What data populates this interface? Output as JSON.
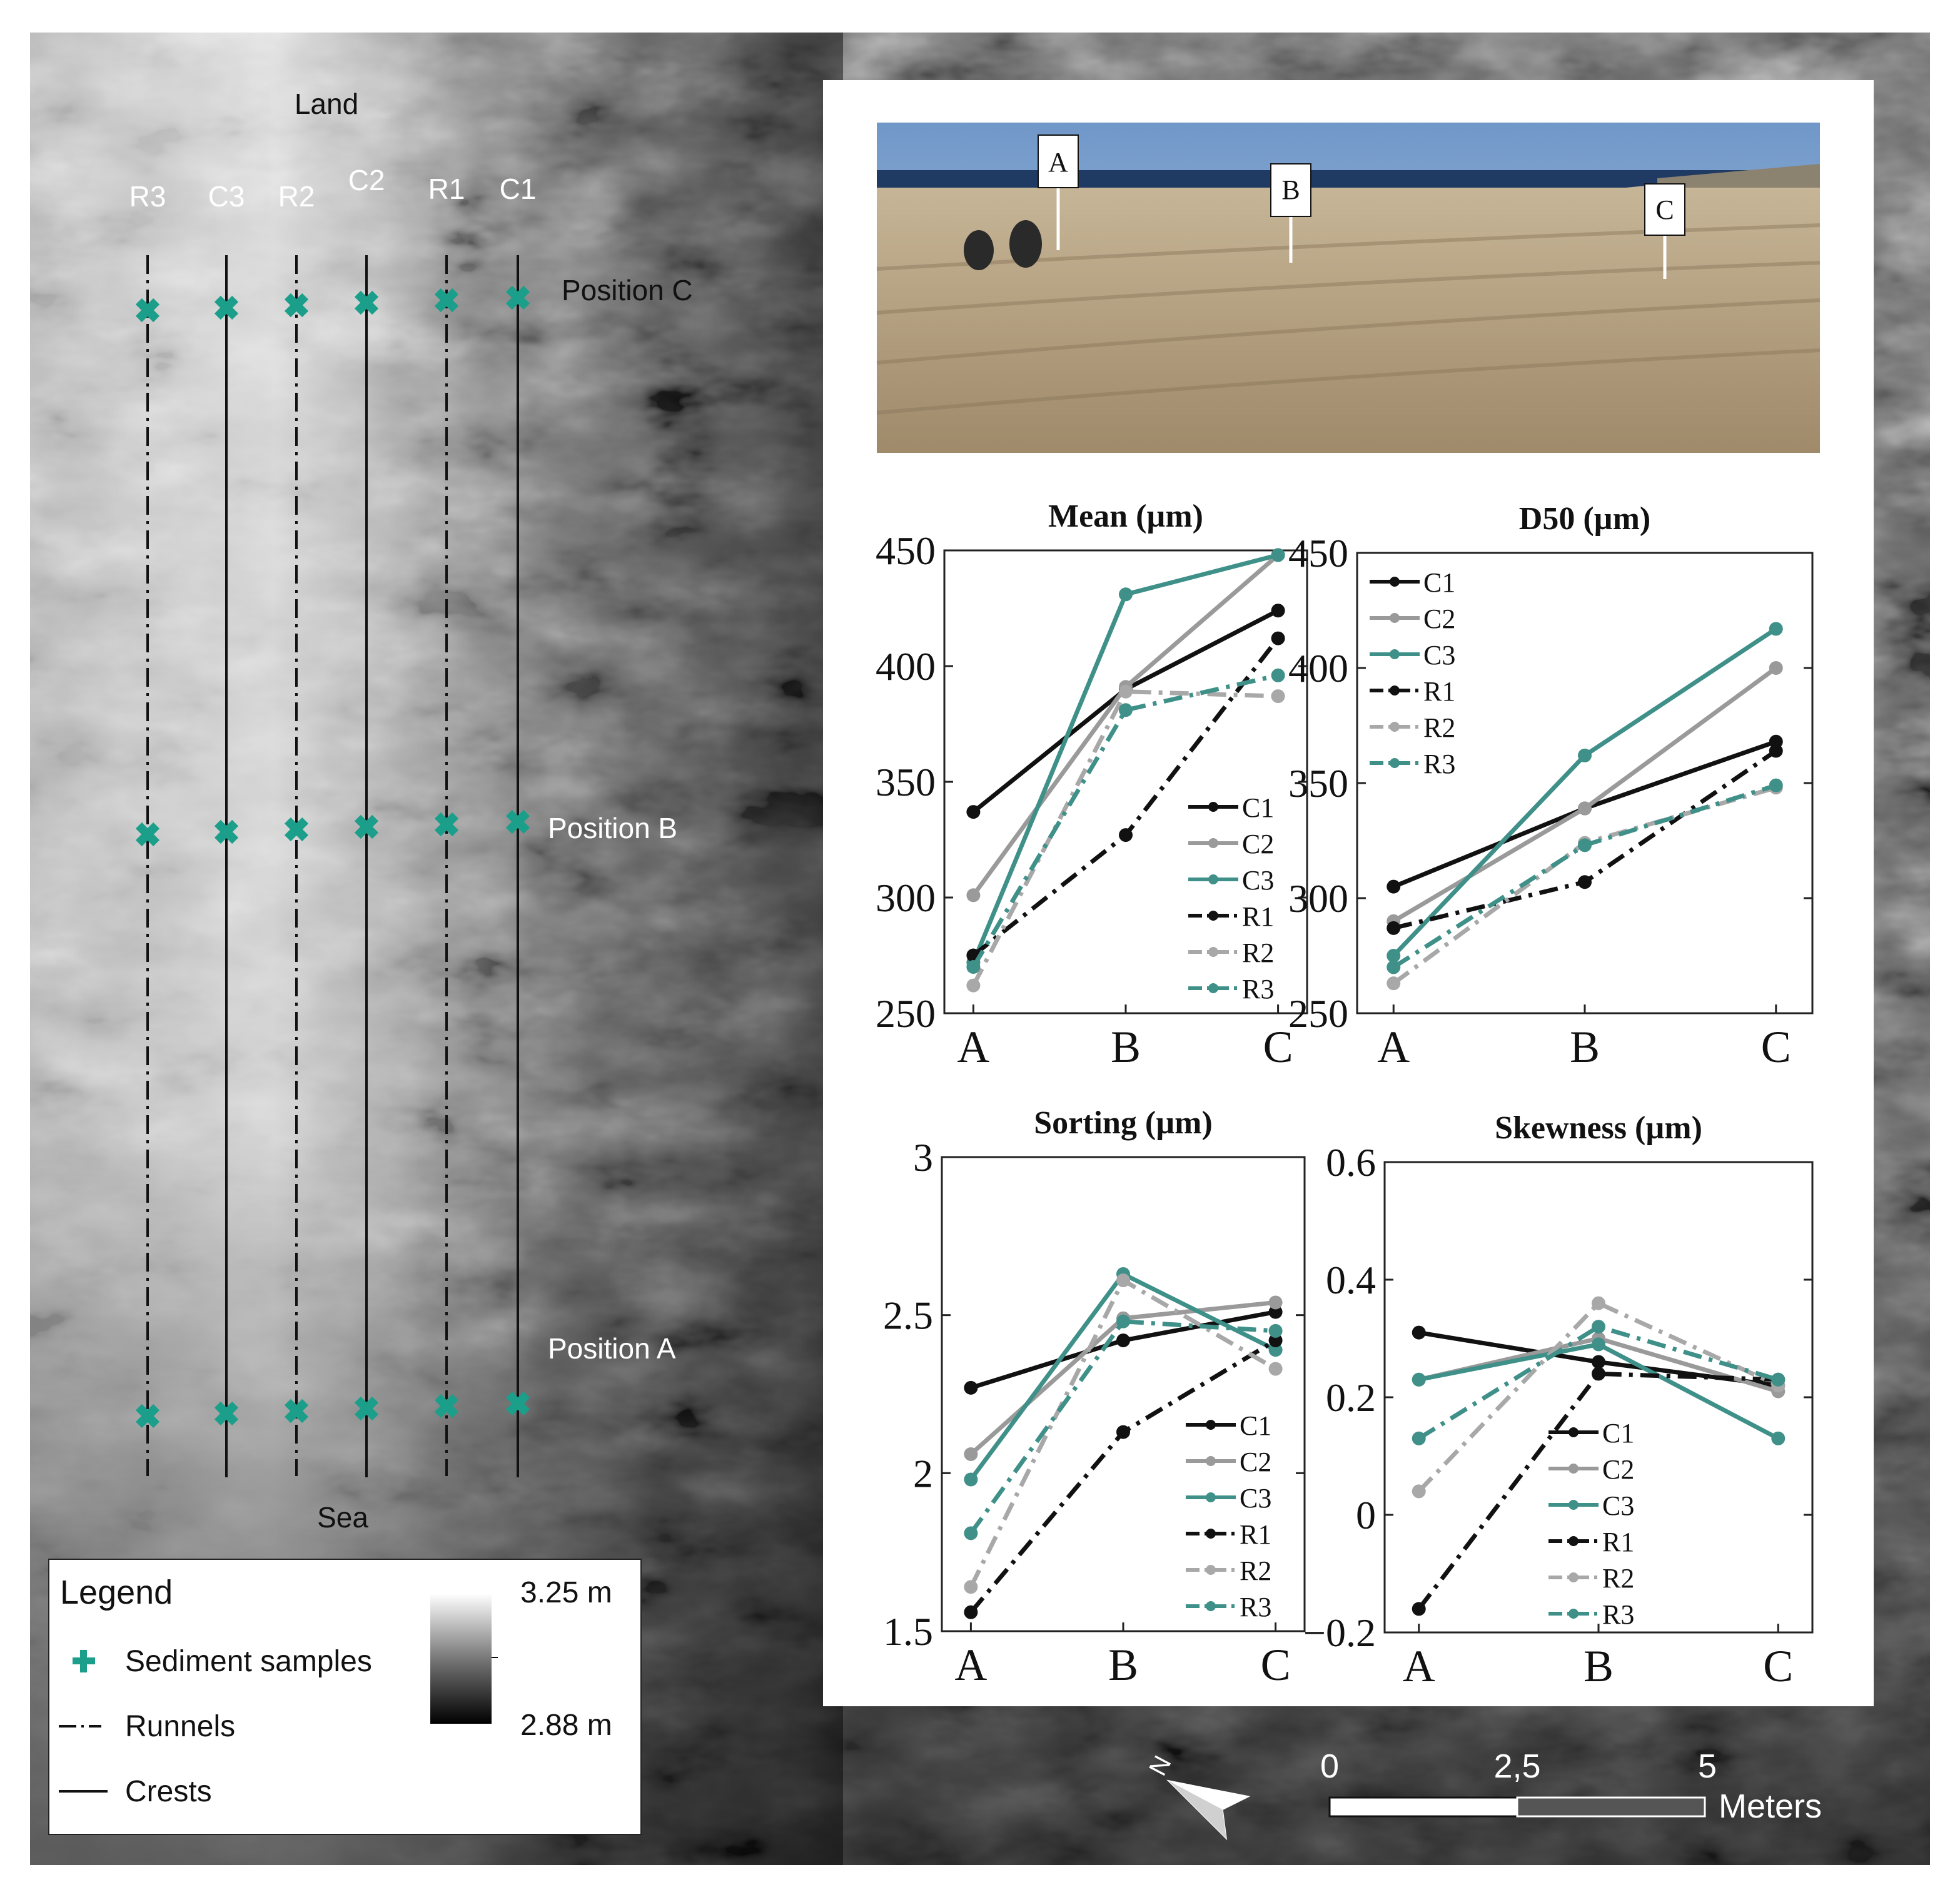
{
  "map": {
    "land_label": "Land",
    "sea_label": "Sea",
    "transects": [
      {
        "label": "R3",
        "type": "runnel"
      },
      {
        "label": "C3",
        "type": "crest"
      },
      {
        "label": "R2",
        "type": "runnel"
      },
      {
        "label": "C2",
        "type": "crest"
      },
      {
        "label": "R1",
        "type": "runnel"
      },
      {
        "label": "C1",
        "type": "crest"
      }
    ],
    "positions": [
      "Position C",
      "Position B",
      "Position A"
    ],
    "sample_color": "#1b9e8a"
  },
  "legend": {
    "title": "Legend",
    "items": [
      {
        "symbol": "plus-icon",
        "label": "Sediment samples"
      },
      {
        "symbol": "dash-dot-line",
        "label": "Runnels"
      },
      {
        "symbol": "solid-line",
        "label": "Crests"
      }
    ],
    "elevation_max": "3.25 m",
    "elevation_min": "2.88 m"
  },
  "scalebar": {
    "ticks": [
      "0",
      "2,5",
      "5"
    ],
    "unit": "Meters",
    "north_label": "N"
  },
  "photo": {
    "markers": [
      "A",
      "B",
      "C"
    ]
  },
  "series_styles": {
    "C1": {
      "color": "#111111",
      "dash": "solid"
    },
    "C2": {
      "color": "#9a9a9a",
      "dash": "solid"
    },
    "C3": {
      "color": "#3e9088",
      "dash": "solid"
    },
    "R1": {
      "color": "#111111",
      "dash": "dashdot"
    },
    "R2": {
      "color": "#a8a8a8",
      "dash": "dashdot"
    },
    "R3": {
      "color": "#3e9088",
      "dash": "dashdot"
    }
  },
  "chart_data": [
    {
      "type": "line",
      "title": "Mean (µm)",
      "categories": [
        "A",
        "B",
        "C"
      ],
      "ylim": [
        250,
        450
      ],
      "yticks": [
        "250",
        "300",
        "350",
        "400",
        "450"
      ],
      "legend_position": "bottom-right",
      "series": [
        {
          "name": "C1",
          "values": [
            337,
            390,
            424
          ]
        },
        {
          "name": "C2",
          "values": [
            301,
            391,
            448
          ]
        },
        {
          "name": "C3",
          "values": [
            272,
            431,
            448
          ]
        },
        {
          "name": "R1",
          "values": [
            275,
            327,
            412
          ]
        },
        {
          "name": "R2",
          "values": [
            262,
            389,
            387
          ]
        },
        {
          "name": "R3",
          "values": [
            270,
            381,
            396
          ]
        }
      ]
    },
    {
      "type": "line",
      "title": "D50 (µm)",
      "categories": [
        "A",
        "B",
        "C"
      ],
      "ylim": [
        250,
        450
      ],
      "yticks": [
        "250",
        "300",
        "350",
        "400",
        "450"
      ],
      "legend_position": "top-left",
      "series": [
        {
          "name": "C1",
          "values": [
            305,
            339,
            368
          ]
        },
        {
          "name": "C2",
          "values": [
            290,
            339,
            400
          ]
        },
        {
          "name": "C3",
          "values": [
            275,
            362,
            417
          ]
        },
        {
          "name": "R1",
          "values": [
            287,
            307,
            364
          ]
        },
        {
          "name": "R2",
          "values": [
            263,
            324,
            348
          ]
        },
        {
          "name": "R3",
          "values": [
            270,
            323,
            349
          ]
        }
      ]
    },
    {
      "type": "line",
      "title": "Sorting (µm)",
      "categories": [
        "A",
        "B",
        "C"
      ],
      "ylim": [
        1.5,
        3
      ],
      "yticks": [
        "1.5",
        "2",
        "2.5",
        "3"
      ],
      "legend_position": "bottom-right",
      "series": [
        {
          "name": "C1",
          "values": [
            2.27,
            2.42,
            2.51
          ]
        },
        {
          "name": "C2",
          "values": [
            2.06,
            2.49,
            2.54
          ]
        },
        {
          "name": "C3",
          "values": [
            1.98,
            2.63,
            2.39
          ]
        },
        {
          "name": "R1",
          "values": [
            1.56,
            2.13,
            2.42
          ]
        },
        {
          "name": "R2",
          "values": [
            1.64,
            2.61,
            2.33
          ]
        },
        {
          "name": "R3",
          "values": [
            1.81,
            2.48,
            2.45
          ]
        }
      ]
    },
    {
      "type": "line",
      "title": "Skewness (µm)",
      "categories": [
        "A",
        "B",
        "C"
      ],
      "ylim": [
        -0.2,
        0.6
      ],
      "yticks": [
        "−0.2",
        "0",
        "0.2",
        "0.4",
        "0.6"
      ],
      "legend_position": "bottom-center",
      "series": [
        {
          "name": "C1",
          "values": [
            0.31,
            0.26,
            0.22
          ]
        },
        {
          "name": "C2",
          "values": [
            0.23,
            0.3,
            0.21
          ]
        },
        {
          "name": "C3",
          "values": [
            0.23,
            0.29,
            0.13
          ]
        },
        {
          "name": "R1",
          "values": [
            -0.16,
            0.24,
            0.23
          ]
        },
        {
          "name": "R2",
          "values": [
            0.04,
            0.36,
            0.22
          ]
        },
        {
          "name": "R3",
          "values": [
            0.13,
            0.32,
            0.23
          ]
        }
      ]
    }
  ]
}
